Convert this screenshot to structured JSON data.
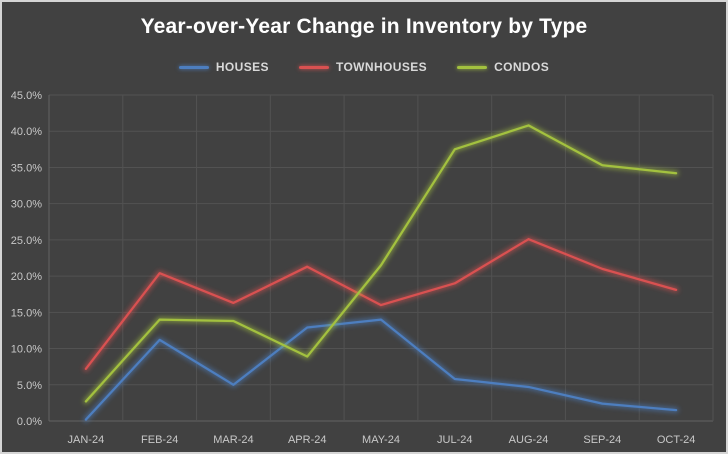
{
  "chart": {
    "background": "#414141",
    "border_color": "#d5d5d5",
    "grid_color": "#525252",
    "axis_line_color": "#626262",
    "tick_label_color": "#c8c8c8",
    "title_color": "#ffffff",
    "legend_label_color": "#d9d9d9"
  },
  "chart_data": {
    "type": "line",
    "title": "Year-over-Year Change in Inventory by Type",
    "categories": [
      "JAN-24",
      "FEB-24",
      "MAR-24",
      "APR-24",
      "MAY-24",
      "JUL-24",
      "AUG-24",
      "SEP-24",
      "OCT-24"
    ],
    "series": [
      {
        "name": "HOUSES",
        "color": "#4d7ebf",
        "values": [
          0.2,
          11.2,
          5.0,
          12.9,
          14.0,
          5.8,
          4.7,
          2.4,
          1.5
        ]
      },
      {
        "name": "TOWNHOUSES",
        "color": "#d95151",
        "values": [
          7.2,
          20.4,
          16.3,
          21.3,
          16.0,
          19.0,
          25.1,
          21.0,
          18.1
        ]
      },
      {
        "name": "CONDOS",
        "color": "#a3c13f",
        "values": [
          2.7,
          14.0,
          13.8,
          8.9,
          21.5,
          37.5,
          40.8,
          35.3,
          34.2
        ]
      }
    ],
    "ylim": [
      0,
      45
    ],
    "ytick_step": 5,
    "ytick_labels": [
      "0.0%",
      "5.0%",
      "10.0%",
      "15.0%",
      "20.0%",
      "25.0%",
      "30.0%",
      "35.0%",
      "40.0%",
      "45.0%"
    ],
    "grid": true,
    "legend_position": "top-center"
  }
}
